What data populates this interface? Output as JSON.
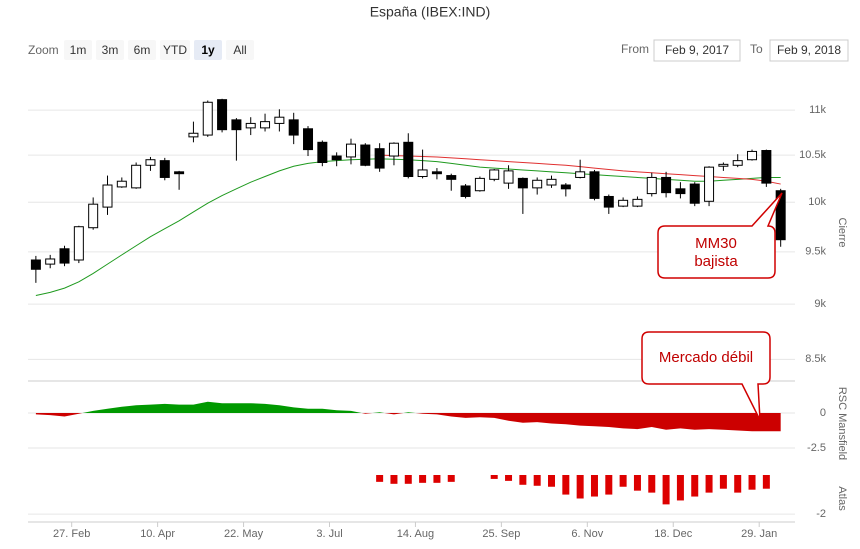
{
  "zoom": {
    "label": "Zoom",
    "buttons": [
      "1m",
      "3m",
      "6m",
      "YTD",
      "1y",
      "All"
    ],
    "selected": 4
  },
  "range": {
    "from_label": "From",
    "from": "Feb 9, 2017",
    "to_label": "To",
    "to": "Feb 9, 2018"
  },
  "chart_data": [
    {
      "type": "candlestick",
      "title": "España (IBEX:IND)",
      "ylabel": "Cierre",
      "x": [
        0,
        1,
        2,
        3,
        4,
        5,
        6,
        7,
        8,
        9,
        10,
        11,
        12,
        13,
        14,
        15,
        16,
        17,
        18,
        19,
        20,
        21,
        22,
        23,
        24,
        25,
        26,
        27,
        28,
        29,
        30,
        31,
        32,
        33,
        34,
        35,
        36,
        37,
        38,
        39,
        40,
        41,
        42,
        43,
        44,
        45,
        46,
        47,
        48,
        49,
        50,
        51,
        52
      ],
      "xlim": [
        -0.55,
        53
      ],
      "xticks": [
        {
          "value": 2.5,
          "label": "27. Feb"
        },
        {
          "value": 8.5,
          "label": "10. Apr"
        },
        {
          "value": 14.5,
          "label": "22. May"
        },
        {
          "value": 20.5,
          "label": "3. Jul"
        },
        {
          "value": 26.5,
          "label": "14. Aug"
        },
        {
          "value": 32.5,
          "label": "25. Sep"
        },
        {
          "value": 38.5,
          "label": "6. Nov"
        },
        {
          "value": 44.5,
          "label": "18. Dec"
        },
        {
          "value": 50.5,
          "label": "29. Jan"
        }
      ],
      "open": [
        9420,
        9380,
        9530,
        9420,
        9740,
        9950,
        10160,
        10150,
        10390,
        10440,
        10320,
        10700,
        10720,
        11120,
        10890,
        10800,
        10800,
        10850,
        10890,
        10790,
        10640,
        10490,
        10480,
        10610,
        10570,
        10490,
        10640,
        10270,
        10320,
        10280,
        10170,
        10120,
        10240,
        10200,
        10250,
        10150,
        10180,
        10180,
        10260,
        10320,
        10060,
        9960,
        9960,
        10090,
        10260,
        10140,
        10190,
        10010,
        10380,
        10390,
        10450,
        10550,
        10120
      ],
      "high": [
        9460,
        9470,
        9560,
        9760,
        10050,
        10280,
        10260,
        10420,
        10480,
        10470,
        10330,
        10870,
        11110,
        11130,
        10910,
        10920,
        10960,
        11010,
        10970,
        10820,
        10660,
        10530,
        10680,
        10630,
        10630,
        10640,
        10740,
        10560,
        10360,
        10300,
        10190,
        10270,
        10350,
        10390,
        10260,
        10260,
        10280,
        10200,
        10450,
        10340,
        10080,
        10050,
        10060,
        10310,
        10320,
        10210,
        10210,
        10380,
        10420,
        10510,
        10560,
        10560,
        10140
      ],
      "low": [
        9200,
        9340,
        9360,
        9390,
        9720,
        9870,
        10150,
        10140,
        10330,
        10230,
        10130,
        10640,
        10700,
        10750,
        10440,
        10720,
        10760,
        10760,
        10620,
        10490,
        10380,
        10380,
        10400,
        10380,
        10320,
        10390,
        10250,
        10250,
        10240,
        10120,
        10040,
        10110,
        10220,
        10140,
        9880,
        10080,
        10150,
        10060,
        10250,
        10020,
        9880,
        9950,
        9950,
        10060,
        10050,
        10040,
        9960,
        9960,
        10330,
        10370,
        10440,
        10160,
        9550
      ],
      "close": [
        9330,
        9430,
        9390,
        9750,
        9980,
        10180,
        10220,
        10390,
        10450,
        10260,
        10300,
        10740,
        11090,
        10780,
        10780,
        10850,
        10870,
        10920,
        10720,
        10560,
        10420,
        10450,
        10620,
        10390,
        10360,
        10630,
        10270,
        10340,
        10300,
        10240,
        10060,
        10250,
        10340,
        10330,
        10150,
        10230,
        10240,
        10140,
        10320,
        10040,
        9950,
        10020,
        10030,
        10260,
        10100,
        10090,
        9990,
        10370,
        10400,
        10440,
        10540,
        10200,
        9620
      ],
      "up_color": "#ffffff",
      "down_color": "#000000",
      "lines": [
        {
          "color": "#1f9a1f",
          "values": [
            9080,
            9110,
            9150,
            9210,
            9290,
            9380,
            9470,
            9560,
            9650,
            9730,
            9810,
            9900,
            9990,
            10070,
            10140,
            10210,
            10270,
            10330,
            10380,
            10410,
            10430,
            10440,
            10450,
            10455,
            10460,
            10455,
            10450,
            10440,
            10430,
            10410,
            10390,
            10370,
            10360,
            10350,
            10340,
            10330,
            10320,
            10310,
            10300,
            10290,
            10280,
            10270,
            10260,
            10250,
            10240,
            10230,
            10220,
            10220,
            10230,
            10240,
            10250,
            10260,
            10260
          ]
        },
        {
          "color": "#e03030",
          "values": [
            null,
            null,
            null,
            null,
            null,
            null,
            null,
            null,
            null,
            null,
            null,
            null,
            null,
            null,
            null,
            null,
            null,
            null,
            null,
            null,
            null,
            null,
            null,
            null,
            10500,
            10495,
            10490,
            10485,
            10480,
            10470,
            10460,
            10450,
            10440,
            10430,
            10420,
            10410,
            10400,
            10390,
            10375,
            10360,
            10345,
            10330,
            10320,
            10310,
            10300,
            10290,
            10280,
            10270,
            10260,
            10250,
            10240,
            10220,
            10190
          ]
        }
      ],
      "log": true,
      "ylim": [
        8320,
        11290
      ],
      "yticks": [
        {
          "value": 8500,
          "label": "8.5k"
        },
        {
          "value": 9000,
          "label": "9k"
        },
        {
          "value": 9500,
          "label": "9.5k"
        },
        {
          "value": 10000,
          "label": "10k"
        },
        {
          "value": 10500,
          "label": "10.5k"
        },
        {
          "value": 11000,
          "label": "11k"
        }
      ],
      "grid": true,
      "annotations": [
        {
          "lines": [
            "MM30",
            "bajista"
          ]
        },
        {
          "lines": [
            "Mercado débil"
          ]
        }
      ]
    },
    {
      "type": "area",
      "ylabel": "RSC Mansfield",
      "color": "#009900",
      "negative_color": "#cc0000",
      "values": [
        -0.1,
        -0.15,
        -0.25,
        -0.05,
        0.15,
        0.3,
        0.45,
        0.55,
        0.6,
        0.65,
        0.6,
        0.6,
        0.8,
        0.7,
        0.7,
        0.7,
        0.65,
        0.55,
        0.4,
        0.3,
        0.3,
        0.2,
        0.15,
        -0.05,
        0.05,
        -0.1,
        0.05,
        -0.05,
        -0.1,
        -0.25,
        -0.35,
        -0.3,
        -0.35,
        -0.55,
        -0.7,
        -0.65,
        -0.75,
        -0.8,
        -0.9,
        -0.95,
        -1.0,
        -1.1,
        -1.15,
        -1.0,
        -1.2,
        -1.1,
        -1.2,
        -1.15,
        -1.2,
        -1.25,
        -1.3,
        -1.3,
        -1.3
      ],
      "ylim": [
        -3.5,
        2
      ],
      "yticks": [
        0,
        -2.5
      ],
      "grid": true
    },
    {
      "type": "bar",
      "ylabel": "Atlas",
      "color": "#dd0000",
      "values": [
        null,
        null,
        null,
        null,
        null,
        null,
        null,
        null,
        null,
        null,
        null,
        null,
        null,
        null,
        null,
        null,
        null,
        null,
        null,
        null,
        null,
        null,
        null,
        null,
        -0.35,
        -0.45,
        -0.45,
        -0.4,
        -0.4,
        -0.35,
        null,
        null,
        -0.2,
        -0.3,
        -0.5,
        -0.55,
        -0.6,
        -1.0,
        -1.2,
        -1.1,
        -1.0,
        -0.6,
        -0.8,
        -0.9,
        -1.5,
        -1.3,
        -1.1,
        -0.9,
        -0.7,
        -0.9,
        -0.75,
        -0.7,
        null
      ],
      "ylim": [
        -2.4,
        0
      ],
      "yticks": [
        -2
      ],
      "grid": true
    }
  ]
}
